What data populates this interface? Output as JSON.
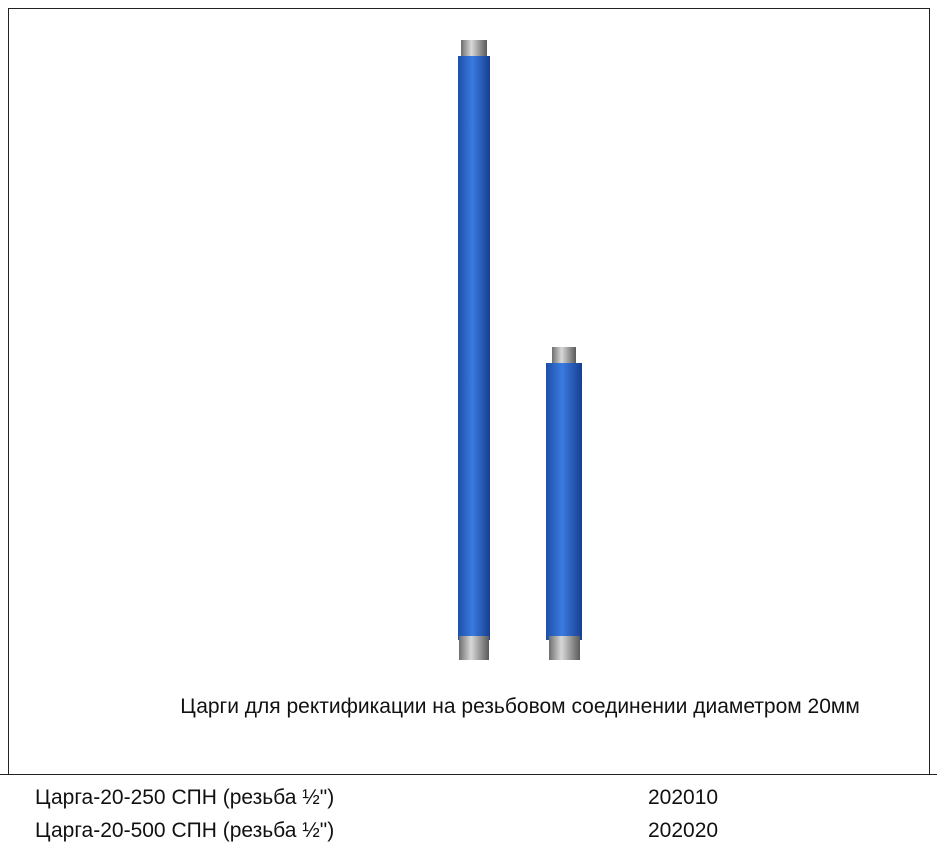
{
  "caption": "Царги для ректификации на резьбовом соединении диаметром 20мм",
  "table": {
    "rows": [
      [
        "Царга-20-250 СПН (резьба ½\")",
        "202010"
      ],
      [
        "Царга-20-500 СПН (резьба ½\")",
        "202020"
      ]
    ]
  }
}
